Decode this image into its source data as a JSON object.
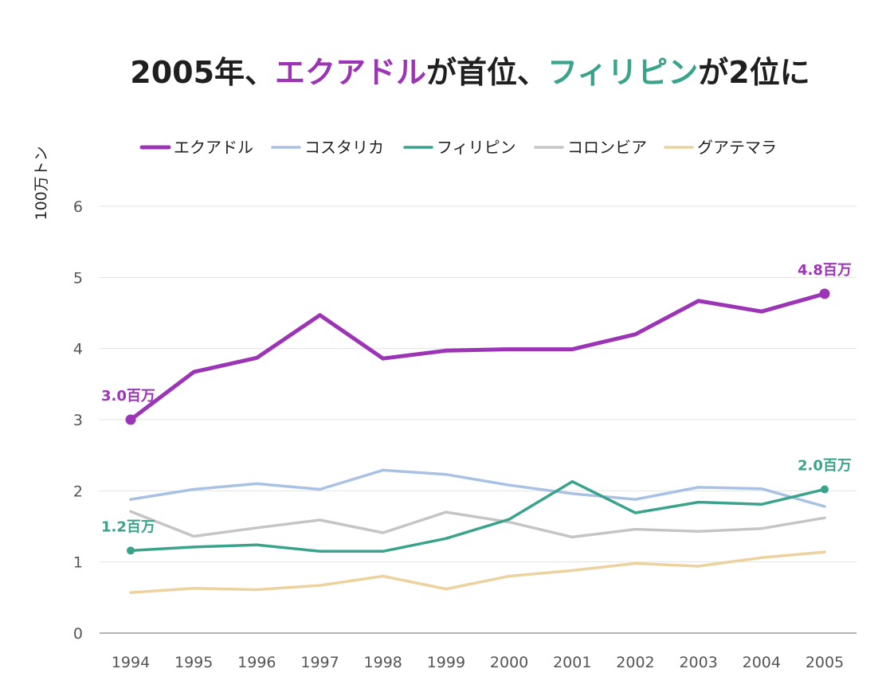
{
  "title": {
    "parts": [
      {
        "text": "2005年、",
        "color": "#1f1f1f"
      },
      {
        "text": "エクアドル",
        "color": "#9b34b5"
      },
      {
        "text": "が首位、",
        "color": "#1f1f1f"
      },
      {
        "text": "フィリピン",
        "color": "#3aa38c"
      },
      {
        "text": "が2位に",
        "color": "#1f1f1f"
      }
    ]
  },
  "chart_data": {
    "type": "line",
    "title": "2005年、エクアドルが首位、フィリピンが2位に",
    "ylabel": "100万トン",
    "xlabel": "",
    "ylim": [
      0,
      6
    ],
    "yticks": [
      "0",
      "1",
      "2",
      "3",
      "4",
      "5",
      "6"
    ],
    "grid": true,
    "legend_position": "top",
    "x": [
      "1994",
      "1995",
      "1996",
      "1997",
      "1998",
      "1999",
      "2000",
      "2001",
      "2002",
      "2003",
      "2004",
      "2005"
    ],
    "series": [
      {
        "name": "エクアドル",
        "color": "#9b34b5",
        "width": "thick",
        "values": [
          3.0,
          3.67,
          3.87,
          4.47,
          3.86,
          3.97,
          3.99,
          3.99,
          4.2,
          4.67,
          4.52,
          4.77
        ]
      },
      {
        "name": "コスタリカ",
        "color": "#a9c1e3",
        "width": "normal",
        "values": [
          1.88,
          2.02,
          2.1,
          2.02,
          2.29,
          2.23,
          2.08,
          1.96,
          1.88,
          2.05,
          2.03,
          1.78
        ]
      },
      {
        "name": "フィリピン",
        "color": "#3aa38c",
        "width": "normal",
        "values": [
          1.16,
          1.21,
          1.24,
          1.15,
          1.15,
          1.33,
          1.6,
          2.13,
          1.69,
          1.84,
          1.81,
          2.02
        ]
      },
      {
        "name": "コロンビア",
        "color": "#c5c5c5",
        "width": "normal",
        "values": [
          1.71,
          1.36,
          1.48,
          1.59,
          1.41,
          1.7,
          1.56,
          1.35,
          1.46,
          1.43,
          1.47,
          1.62
        ]
      },
      {
        "name": "グアテマラ",
        "color": "#ecd29e",
        "width": "normal",
        "values": [
          0.57,
          0.63,
          0.61,
          0.67,
          0.8,
          0.62,
          0.8,
          0.88,
          0.98,
          0.94,
          1.06,
          1.14
        ]
      }
    ],
    "annotations": [
      {
        "series": "エクアドル",
        "x": "1994",
        "value": 3.0,
        "text": "3.0百万",
        "color": "#9b34b5"
      },
      {
        "series": "エクアドル",
        "x": "2005",
        "value": 4.77,
        "text": "4.8百万",
        "color": "#9b34b5"
      },
      {
        "series": "フィリピン",
        "x": "1994",
        "value": 1.16,
        "text": "1.2百万",
        "color": "#3aa38c"
      },
      {
        "series": "フィリピン",
        "x": "2005",
        "value": 2.02,
        "text": "2.0百万",
        "color": "#3aa38c"
      }
    ]
  }
}
